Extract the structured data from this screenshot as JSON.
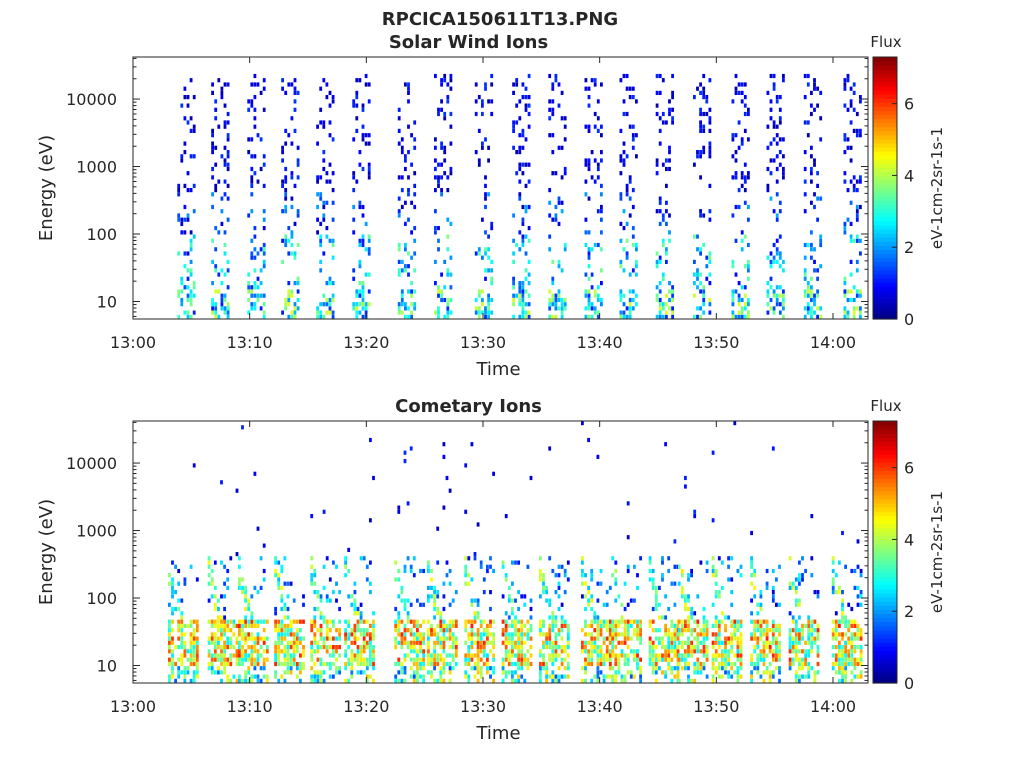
{
  "figure_title": "RPCICA150611T13.PNG",
  "chart_data": [
    {
      "type": "heatmap",
      "title": "Solar Wind Ions",
      "xlabel": "Time",
      "ylabel": "Energy (eV)",
      "x_ticks": [
        "13:00",
        "13:10",
        "13:20",
        "13:30",
        "13:40",
        "13:50",
        "14:00"
      ],
      "xlim": [
        "13:00",
        "14:03"
      ],
      "y_scale": "log",
      "y_ticks": [
        "10",
        "100",
        "1000",
        "10000"
      ],
      "ylim": [
        5.5,
        42000
      ],
      "colorbar": {
        "title": "Flux",
        "label": "eV-1cm-2sr-1s-1",
        "ticks": [
          "0",
          "2",
          "4",
          "6"
        ],
        "range": [
          0,
          7.3
        ],
        "colormap": "jet"
      },
      "sweeps": {
        "start_minutes": [
          3.8,
          6.7,
          9.8,
          12.7,
          15.7,
          18.8,
          22.7,
          25.8,
          29.3,
          32.5,
          35.6,
          38.7,
          41.7,
          44.8,
          48.0,
          51.3,
          54.3,
          57.5,
          60.9
        ],
        "duration_minutes": 1.4,
        "max_energy_eV": 25000,
        "pattern": "sparse low-flux counts across 10-20000 eV, moderate flux below 100 eV"
      }
    },
    {
      "type": "heatmap",
      "title": "Cometary Ions",
      "xlabel": "Time",
      "ylabel": "Energy (eV)",
      "x_ticks": [
        "13:00",
        "13:10",
        "13:20",
        "13:30",
        "13:40",
        "13:50",
        "14:00"
      ],
      "xlim": [
        "13:00",
        "14:03"
      ],
      "y_scale": "log",
      "y_ticks": [
        "10",
        "100",
        "1000",
        "10000"
      ],
      "ylim": [
        5.5,
        42000
      ],
      "colorbar": {
        "title": "Flux",
        "label": "eV-1cm-2sr-1s-1",
        "ticks": [
          "0",
          "2",
          "4",
          "6"
        ],
        "range": [
          0,
          7.3
        ],
        "colormap": "jet"
      },
      "sweeps": {
        "start_minutes": [
          3.0,
          6.4,
          9.0,
          12.1,
          15.2,
          18.1,
          22.4,
          25.2,
          28.4,
          31.6,
          34.8,
          38.4,
          41.0,
          44.2,
          46.7,
          49.6,
          52.9,
          56.2,
          59.9
        ],
        "duration_minutes": 2.4,
        "peak_energy_eV": 20,
        "peak_flux": 5.8,
        "pattern": "high flux 10-50 eV, dispersive streaks up to ~300 eV, rare counts above 1000 eV"
      }
    }
  ]
}
